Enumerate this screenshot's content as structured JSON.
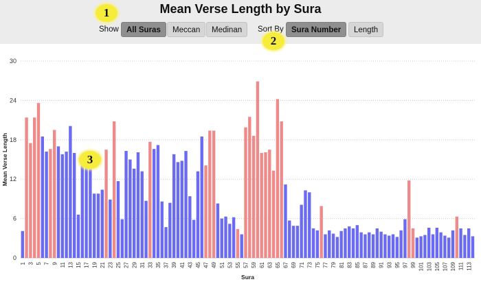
{
  "header": {
    "title": "Mean Verse Length by Sura"
  },
  "controls": {
    "show_label": "Show",
    "show_options": [
      "All Suras",
      "Meccan",
      "Medinan"
    ],
    "show_selected": "All Suras",
    "sort_label": "Sort By",
    "sort_options": [
      "Sura Number",
      "Length"
    ],
    "sort_selected": "Sura Number"
  },
  "badges": [
    "1",
    "2",
    "3"
  ],
  "colors": {
    "meccan": "#6b6bf2",
    "medinan": "#ee8a8a",
    "header_bg": "#ececec",
    "badge": "#f6ec3b"
  },
  "chart_data": {
    "type": "bar",
    "xlabel": "Sura",
    "ylabel": "Mean Verse Length",
    "ylim": [
      0,
      30
    ],
    "yticks": [
      0,
      6,
      12,
      18,
      24,
      30
    ],
    "grid": true,
    "legend": "none",
    "x_tick_labels_every": 2,
    "series": [
      {
        "name": "Meccan",
        "color": "#6b6bf2"
      },
      {
        "name": "Medinan",
        "color": "#ee8a8a"
      }
    ],
    "categories": [
      1,
      2,
      3,
      4,
      5,
      6,
      7,
      8,
      9,
      10,
      11,
      12,
      13,
      14,
      15,
      16,
      17,
      18,
      19,
      20,
      21,
      22,
      23,
      24,
      25,
      26,
      27,
      28,
      29,
      30,
      31,
      32,
      33,
      34,
      35,
      36,
      37,
      38,
      39,
      40,
      41,
      42,
      43,
      44,
      45,
      46,
      47,
      48,
      49,
      50,
      51,
      52,
      53,
      54,
      55,
      56,
      57,
      58,
      59,
      60,
      61,
      62,
      63,
      64,
      65,
      66,
      67,
      68,
      69,
      70,
      71,
      72,
      73,
      74,
      75,
      76,
      77,
      78,
      79,
      80,
      81,
      82,
      83,
      84,
      85,
      86,
      87,
      88,
      89,
      90,
      91,
      92,
      93,
      94,
      95,
      96,
      97,
      98,
      99,
      100,
      101,
      102,
      103,
      104,
      105,
      106,
      107,
      108,
      109,
      110,
      111,
      112,
      113,
      114
    ],
    "values": [
      4.1,
      21.4,
      17.5,
      21.4,
      23.6,
      18.5,
      16.2,
      16.6,
      19.5,
      17.0,
      15.8,
      16.2,
      20.1,
      16.0,
      6.6,
      15.4,
      14.5,
      14.8,
      9.8,
      9.8,
      10.4,
      16.5,
      8.9,
      20.8,
      11.7,
      5.9,
      16.3,
      15.0,
      13.6,
      16.1,
      13.2,
      8.7,
      17.7,
      16.6,
      17.2,
      8.6,
      4.7,
      8.4,
      15.8,
      14.6,
      14.8,
      16.3,
      9.4,
      5.8,
      13.2,
      18.5,
      14.1,
      19.4,
      19.4,
      8.3,
      6.0,
      6.3,
      5.2,
      6.2,
      4.4,
      3.6,
      19.9,
      21.5,
      18.6,
      26.9,
      16.0,
      16.1,
      16.5,
      13.3,
      24.2,
      20.8,
      11.2,
      5.7,
      4.9,
      4.9,
      8.1,
      10.3,
      10.0,
      4.5,
      4.2,
      7.9,
      3.6,
      4.2,
      3.7,
      3.2,
      4.1,
      4.5,
      4.8,
      4.5,
      5.0,
      3.9,
      3.6,
      3.9,
      3.6,
      4.5,
      4.0,
      3.6,
      3.4,
      3.6,
      3.2,
      4.2,
      5.9,
      11.8,
      4.5,
      3.1,
      3.3,
      3.5,
      4.6,
      3.6,
      4.6,
      3.9,
      3.4,
      3.1,
      4.2,
      6.3,
      4.5,
      3.5,
      4.5,
      3.3
    ],
    "medinan": [
      2,
      3,
      4,
      5,
      8,
      9,
      22,
      24,
      33,
      47,
      48,
      49,
      55,
      57,
      58,
      59,
      60,
      61,
      62,
      63,
      64,
      65,
      66,
      76,
      98,
      99,
      110
    ]
  }
}
